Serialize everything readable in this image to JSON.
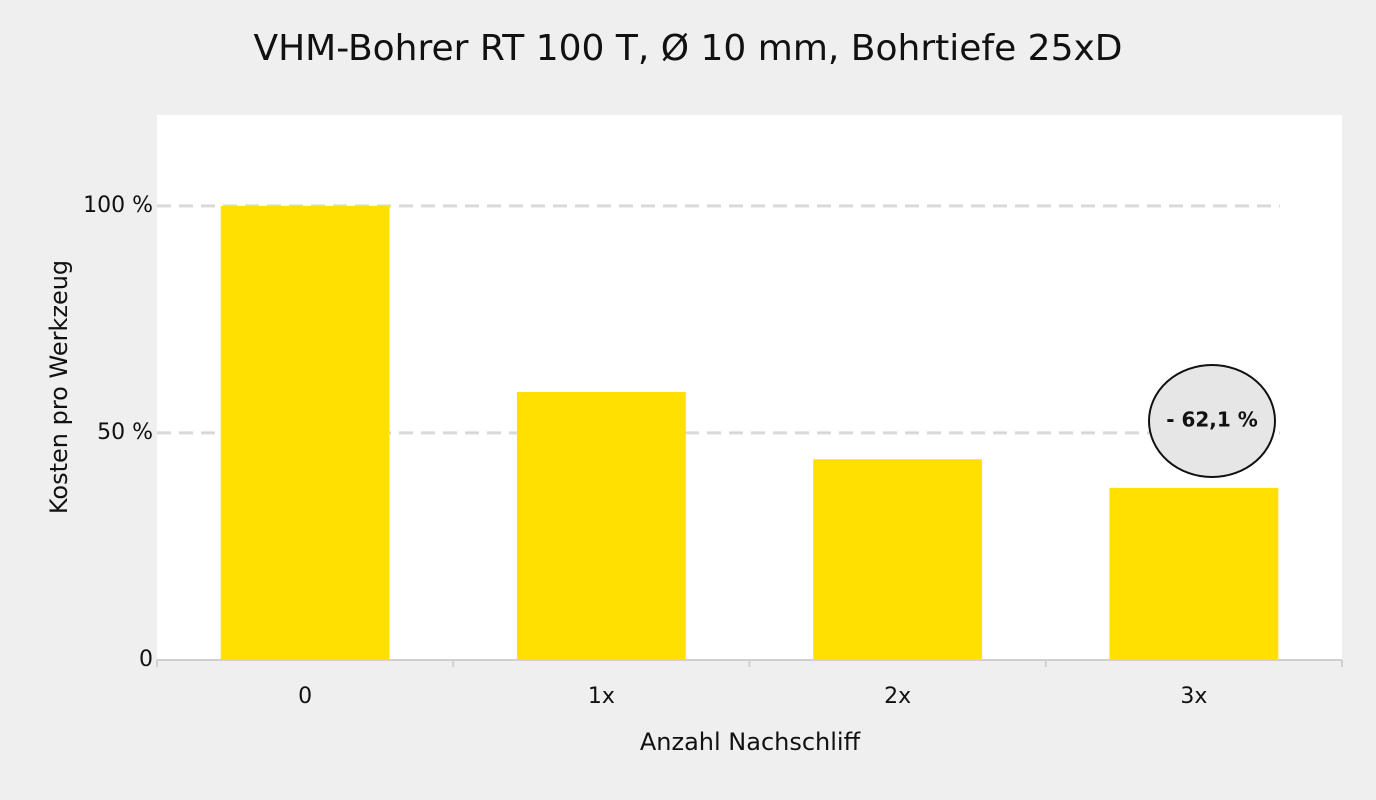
{
  "chart_data": {
    "type": "bar",
    "title": "VHM-Bohrer RT 100 T, Ø 10 mm, Bohrtiefe 25xD",
    "x_label": "Anzahl Nachschliff",
    "y_label": "Kosten pro Werkzeug",
    "categories": [
      "0",
      "1x",
      "2x",
      "3x"
    ],
    "values": [
      100,
      59,
      44.2,
      37.9
    ],
    "color": "#ffe000",
    "ylim": [
      0,
      120
    ],
    "yticks": [
      0,
      {
        "value": 50,
        "label": "50 %"
      },
      {
        "value": 100,
        "label": "100 %"
      }
    ],
    "grid": true,
    "annotation": "- 62,1 %"
  }
}
